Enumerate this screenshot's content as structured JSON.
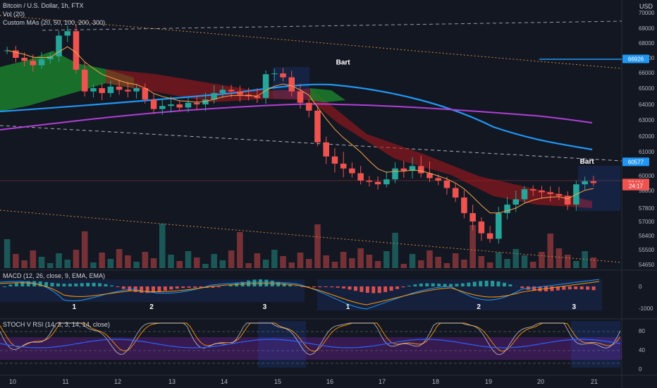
{
  "header": {
    "symbol": "Bitcoin / U.S. Dollar, 1h, FTX",
    "vol": "Vol (20)",
    "mas": "Custom MAs (20, 50, 100, 200, 300)",
    "currency": "USD"
  },
  "macd_label": "MACD (12, 26, close, 9, EMA, EMA)",
  "stoch_label": "STOCH V RSI (14, 3, 3, 14, 14, close)",
  "colors": {
    "background": "#131722",
    "up": "#26a69a",
    "down": "#ef5350",
    "ma_fast": "#f7a44b",
    "ma_blue": "#2196f3",
    "ma_purple": "#b13fd6",
    "ribbon_green": "#1b7f2a",
    "ribbon_red": "#a3171d"
  },
  "chart_data": [
    {
      "type": "line",
      "title": "Bitcoin / U.S. Dollar, 1h, FTX",
      "x_ticks": [
        "10",
        "11",
        "12",
        "13",
        "14",
        "15",
        "16",
        "17",
        "18",
        "19",
        "20",
        "21"
      ],
      "y_ticks": [
        54650,
        55500,
        56400,
        57000,
        57800,
        58800,
        60000,
        61000,
        62000,
        63000,
        64000,
        65000,
        66000,
        67000,
        68000,
        69000,
        70000
      ],
      "ylim": [
        54300,
        70300
      ],
      "price_series_close": [
        67500,
        67000,
        66800,
        66500,
        66900,
        67100,
        68500,
        68800,
        66200,
        64800,
        65000,
        64700,
        65100,
        64900,
        64800,
        65000,
        64300,
        63700,
        63900,
        64000,
        63800,
        64100,
        64000,
        64300,
        64700,
        64900,
        64800,
        64600,
        64500,
        64400,
        65900,
        65950,
        65700,
        64800,
        64100,
        63600,
        61600,
        60800,
        60500,
        60300,
        60100,
        59600,
        59500,
        59300,
        59700,
        60300,
        60200,
        60400,
        60100,
        59800,
        59600,
        59000,
        58400,
        57500,
        57000,
        56500,
        56200,
        57500,
        58000,
        58300,
        58900,
        58800,
        58700,
        58600,
        58500,
        58000,
        59300,
        59550,
        59400
      ],
      "ma_blue_ends": [
        [
          0,
          63650
        ],
        [
          26,
          65300
        ],
        [
          100,
          60500
        ]
      ],
      "ma_purple_ends": [
        [
          0,
          63000
        ],
        [
          100,
          62850
        ]
      ],
      "price_labels": [
        {
          "value": "66926",
          "price": 66926,
          "color": "#2196f3"
        },
        {
          "value": "60577",
          "price": 60577,
          "color": "#2196f3"
        },
        {
          "value": "59404",
          "price": 59404,
          "color": "#ef5350"
        },
        {
          "value": "24:17",
          "price": 59160,
          "color": "#ef5350"
        }
      ],
      "annotations": [
        {
          "text": "Bart",
          "x": 56,
          "price": 66550
        },
        {
          "text": "Bart",
          "x": 97,
          "price": 60500
        }
      ]
    },
    {
      "type": "bar",
      "title": "MACD (12, 26, close, 9, EMA, EMA)",
      "y_ticks": [
        0,
        -1000
      ],
      "ylim": [
        -1100,
        550
      ],
      "wave_labels": [
        {
          "text": "1",
          "x": 12
        },
        {
          "text": "2",
          "x": 25
        },
        {
          "text": "3",
          "x": 44
        },
        {
          "text": "1",
          "x": 58
        },
        {
          "text": "2",
          "x": 80
        },
        {
          "text": "3",
          "x": 96
        }
      ]
    },
    {
      "type": "line",
      "title": "STOCH V RSI (14, 3, 3, 14, 14, close)",
      "y_ticks": [
        80,
        40,
        0
      ],
      "ylim": [
        -10,
        100
      ]
    }
  ],
  "x_axis_labels": [
    "10",
    "11",
    "12",
    "13",
    "14",
    "15",
    "16",
    "17",
    "18",
    "19",
    "20",
    "21"
  ]
}
